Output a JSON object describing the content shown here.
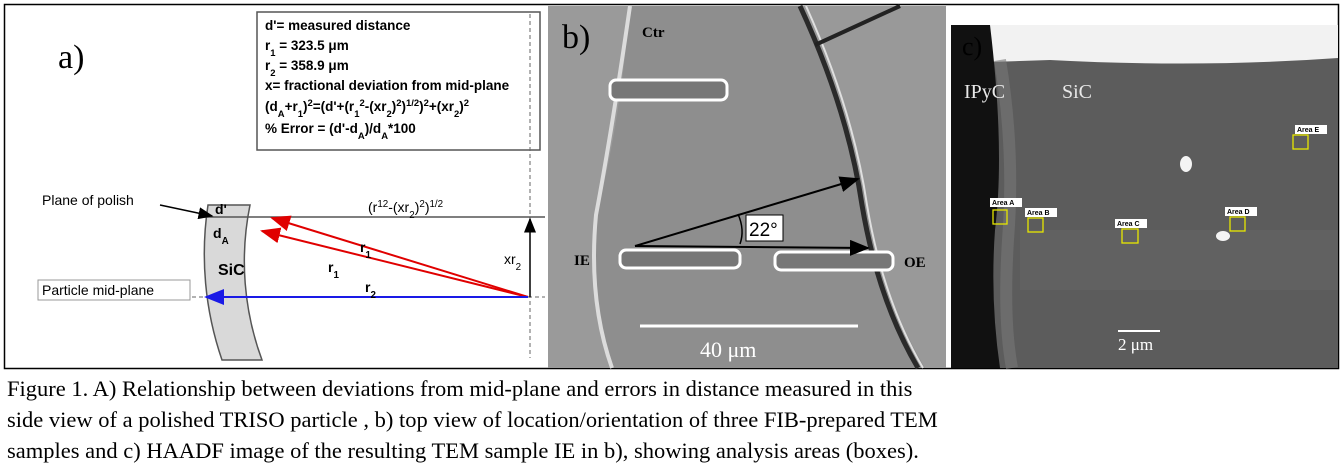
{
  "panel_a": {
    "label": "a)",
    "legend": {
      "definition": "d'= measured distance",
      "r1": [
        "r",
        "1",
        " = 323.5 μm"
      ],
      "r2": [
        "r",
        "2",
        " = 358.9 μm"
      ],
      "x": "x= fractional deviation from mid-plane",
      "equation": [
        "(d",
        "A",
        "+r",
        "1",
        ")",
        "2",
        "=(d'+(r",
        "1",
        "2",
        "-(xr",
        "2",
        ")",
        "2",
        ")",
        "1/2",
        ")",
        "2",
        "+(xr",
        "2",
        ")",
        "2"
      ],
      "error": [
        "% Error = (d'-d",
        "A",
        ")/d",
        "A",
        "*100"
      ]
    },
    "plane_label": "Plane of polish",
    "d_prime": "d'",
    "d_a": [
      "d",
      "A"
    ],
    "chord": [
      "(r",
      "1",
      "2",
      "-(xr",
      "2",
      ")",
      "2",
      ")",
      "1/2"
    ],
    "r1_upper": [
      "r",
      "1"
    ],
    "r1_lower": [
      "r",
      "1"
    ],
    "r2": [
      "r",
      "2"
    ],
    "xr2": [
      "xr",
      "2"
    ],
    "shell": "SiC",
    "midplane_label": "Particle mid-plane"
  },
  "panel_b": {
    "label": "b)",
    "ctr": "Ctr",
    "ie": "IE",
    "oe": "OE",
    "angle": "22°",
    "scale": "40 μm"
  },
  "panel_c": {
    "label": "c)",
    "ipyc": "IPyC",
    "sic": "SiC",
    "areas": [
      "Area A",
      "Area B",
      "Area C",
      "Area D",
      "Area E"
    ],
    "scale": "2 μm"
  },
  "caption": [
    "Figure 1. A)  Relationship between deviations from mid-plane and errors in distance measured in this",
    "side view of a polished TRISO particle , b) top view of location/orientation of three FIB-prepared TEM",
    "samples and c) HAADF image of the resulting TEM sample IE in b), showing analysis areas (boxes)."
  ]
}
